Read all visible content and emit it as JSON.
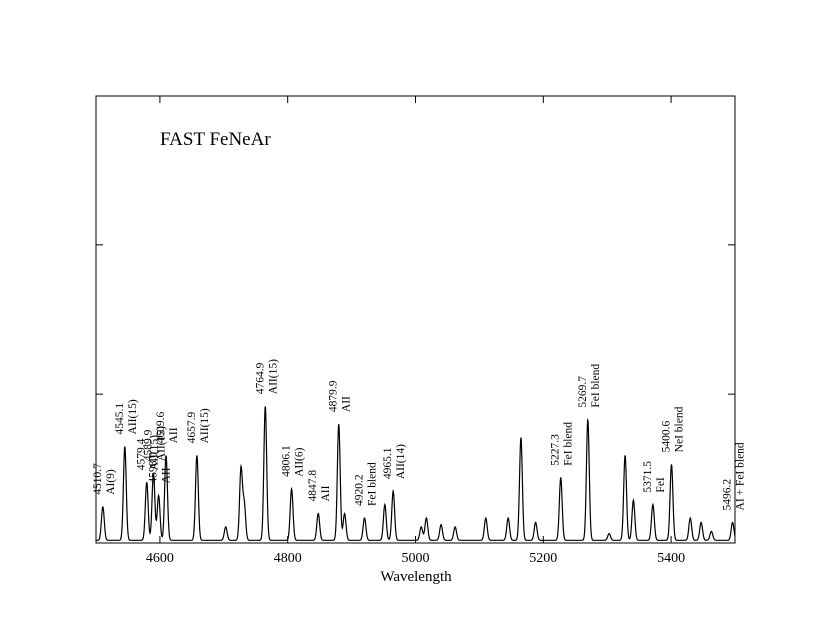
{
  "chart_data": {
    "type": "line",
    "title": "FAST FeNeAr",
    "xlabel": "Wavelength",
    "ylabel": "",
    "xlim": [
      4500,
      5500
    ],
    "ylim": [
      0,
      1
    ],
    "xticks": [
      4600,
      4800,
      5000,
      5200,
      5400
    ],
    "yticks": [
      0.333,
      0.667
    ],
    "grid": false,
    "series": [
      {
        "peaks": [
          [
            4510.7,
            0.075
          ],
          [
            4545.1,
            0.21
          ],
          [
            4579.4,
            0.13
          ],
          [
            4589.9,
            0.15
          ],
          [
            4598.0,
            0.1
          ],
          [
            4609.6,
            0.19
          ],
          [
            4657.9,
            0.19
          ],
          [
            4703.0,
            0.03
          ],
          [
            4726.9,
            0.16
          ],
          [
            4732.0,
            0.08
          ],
          [
            4764.9,
            0.3
          ],
          [
            4806.1,
            0.115
          ],
          [
            4847.8,
            0.06
          ],
          [
            4879.9,
            0.26
          ],
          [
            4889.0,
            0.06
          ],
          [
            4920.2,
            0.05
          ],
          [
            4952.0,
            0.08
          ],
          [
            4965.1,
            0.11
          ],
          [
            5009.0,
            0.03
          ],
          [
            5017.0,
            0.05
          ],
          [
            5040.0,
            0.035
          ],
          [
            5062.0,
            0.03
          ],
          [
            5110.0,
            0.05
          ],
          [
            5145.0,
            0.05
          ],
          [
            5165.0,
            0.23
          ],
          [
            5188.0,
            0.04
          ],
          [
            5227.3,
            0.14
          ],
          [
            5269.7,
            0.27
          ],
          [
            5303.0,
            0.015
          ],
          [
            5328.0,
            0.19
          ],
          [
            5341.0,
            0.09
          ],
          [
            5371.5,
            0.08
          ],
          [
            5400.6,
            0.17
          ],
          [
            5430.0,
            0.05
          ],
          [
            5447.0,
            0.04
          ],
          [
            5463.0,
            0.02
          ],
          [
            5496.2,
            0.04
          ]
        ]
      }
    ],
    "annotations": [
      {
        "wl": 4510.7,
        "lines": [
          "4510.7",
          "AI(9)"
        ]
      },
      {
        "wl": 4545.1,
        "lines": [
          "4545.1",
          "AII(15)"
        ]
      },
      {
        "wl": 4579.4,
        "lines": [
          "4579.4",
          "AII(15)"
        ]
      },
      {
        "wl": 4589.9,
        "lines": [
          "4589.9",
          "AII(15)"
        ]
      },
      {
        "wl": 4598.0,
        "lines": [
          "4598.0",
          "AII"
        ]
      },
      {
        "wl": 4609.6,
        "lines": [
          "4609.6",
          "AII"
        ]
      },
      {
        "wl": 4657.9,
        "lines": [
          "4657.9",
          "AII(15)"
        ]
      },
      {
        "wl": 4764.9,
        "lines": [
          "4764.9",
          "AII(15)"
        ]
      },
      {
        "wl": 4806.1,
        "lines": [
          "4806.1",
          "AII(6)"
        ]
      },
      {
        "wl": 4847.8,
        "lines": [
          "4847.8",
          "AII"
        ]
      },
      {
        "wl": 4879.9,
        "lines": [
          "4879.9",
          "AII"
        ]
      },
      {
        "wl": 4920.2,
        "lines": [
          "4920.2",
          "FeI blend"
        ]
      },
      {
        "wl": 4965.1,
        "lines": [
          "4965.1",
          "AII(14)"
        ]
      },
      {
        "wl": 5227.3,
        "lines": [
          "5227.3",
          "FeI blend"
        ]
      },
      {
        "wl": 5269.7,
        "lines": [
          "5269.7",
          "FeI blend"
        ]
      },
      {
        "wl": 5371.5,
        "lines": [
          "5371.5",
          "FeI"
        ]
      },
      {
        "wl": 5400.6,
        "lines": [
          "5400.6",
          "NeI blend"
        ]
      },
      {
        "wl": 5496.2,
        "lines": [
          "5496.2",
          "AI + FeI blend"
        ]
      }
    ]
  }
}
